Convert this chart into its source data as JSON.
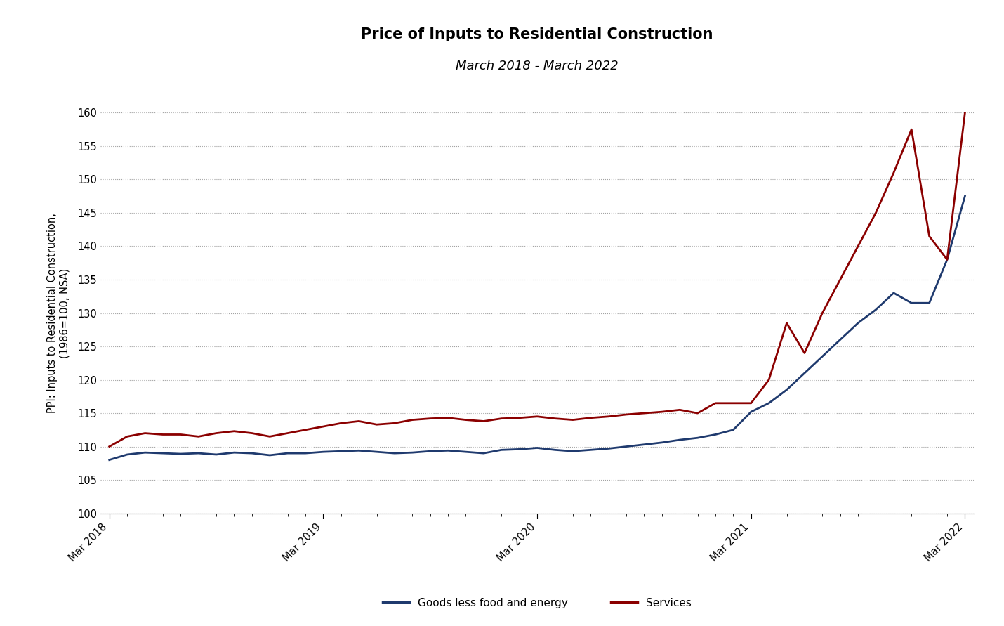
{
  "title": "Price of Inputs to Residential Construction",
  "subtitle": "March 2018 - March 2022",
  "ylabel_line1": "PPI: Inputs to Residential Construction,",
  "ylabel_line2": "(1986=100, NSA)",
  "ylim": [
    100,
    160
  ],
  "yticks": [
    100,
    105,
    110,
    115,
    120,
    125,
    130,
    135,
    140,
    145,
    150,
    155,
    160
  ],
  "title_fontsize": 15,
  "subtitle_fontsize": 13,
  "ylabel_fontsize": 10.5,
  "tick_fontsize": 10.5,
  "legend_fontsize": 11,
  "background_color": "#ffffff",
  "plot_bg_color": "#ffffff",
  "grid_color": "#999999",
  "goods_color": "#1f3a6e",
  "services_color": "#8b0000",
  "goods_label": "Goods less food and energy",
  "services_label": "Services",
  "x_tick_labels": [
    "Mar 2018",
    "Mar 2019",
    "Mar 2020",
    "Mar 2021",
    "Mar 2022"
  ],
  "x_tick_positions": [
    0,
    12,
    24,
    36,
    48
  ],
  "goods": [
    108.0,
    108.8,
    109.1,
    109.0,
    108.9,
    109.0,
    108.8,
    109.1,
    109.0,
    108.7,
    109.0,
    109.0,
    109.2,
    109.3,
    109.4,
    109.2,
    109.0,
    109.1,
    109.3,
    109.4,
    109.2,
    109.0,
    109.5,
    109.6,
    109.8,
    109.5,
    109.3,
    109.5,
    109.7,
    110.0,
    110.3,
    110.6,
    111.0,
    111.3,
    111.8,
    112.5,
    115.2,
    116.5,
    118.5,
    121.0,
    123.5,
    126.0,
    128.5,
    130.5,
    133.0,
    131.5,
    131.5,
    138.0,
    147.5
  ],
  "services": [
    110.0,
    111.5,
    112.0,
    111.8,
    111.8,
    111.5,
    112.0,
    112.3,
    112.0,
    111.5,
    112.0,
    112.5,
    113.0,
    113.5,
    113.8,
    113.3,
    113.5,
    114.0,
    114.2,
    114.3,
    114.0,
    113.8,
    114.2,
    114.3,
    114.5,
    114.2,
    114.0,
    114.3,
    114.5,
    114.8,
    115.0,
    115.2,
    115.5,
    115.0,
    116.5,
    116.5,
    116.5,
    120.0,
    128.5,
    124.0,
    130.0,
    135.0,
    140.0,
    145.0,
    151.0,
    157.5,
    141.5,
    138.0,
    160.0
  ]
}
